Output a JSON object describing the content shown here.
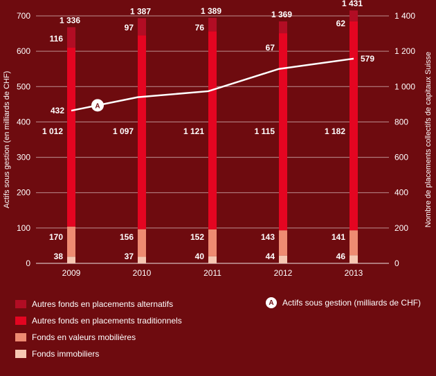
{
  "chart_data": {
    "type": "bar",
    "categories": [
      "2009",
      "2010",
      "2011",
      "2012",
      "2013"
    ],
    "series": [
      {
        "name": "Fonds immobiliers",
        "values": [
          38,
          37,
          40,
          44,
          46
        ],
        "color": "#f6c7b2"
      },
      {
        "name": "Fonds en valeurs mobilières",
        "values": [
          170,
          156,
          152,
          143,
          141
        ],
        "color": "#ee8b72"
      },
      {
        "name": "Autres fonds en placements traditionnels",
        "values": [
          1012,
          1097,
          1121,
          1115,
          1182
        ],
        "color": "#e40521"
      },
      {
        "name": "Autres fonds en placements alternatifs",
        "values": [
          116,
          97,
          76,
          67,
          62
        ],
        "color": "#b20d24"
      }
    ],
    "totals": [
      "1 336",
      "1 387",
      "1 389",
      "1 369",
      "1 431"
    ],
    "bar_labels": {
      "immo": [
        "38",
        "37",
        "40",
        "44",
        "46"
      ],
      "valeurs": [
        "170",
        "156",
        "152",
        "143",
        "141"
      ],
      "traditionnels": [
        "1 012",
        "1 097",
        "1 121",
        "1 115",
        "1 182"
      ],
      "alternatifs": [
        "116",
        "97",
        "76",
        "67",
        "62"
      ]
    },
    "line": {
      "name": "Actifs sous gestion (milliards de CHF)",
      "marker": "A",
      "values": [
        432,
        470,
        487,
        550,
        579
      ],
      "first_label": "432",
      "last_label": "579",
      "color": "#ffffff"
    },
    "ylabel_left": "Actifs sous gestion (en milliards de CHF)",
    "ylabel_right": "Nombre de placements collectifs de capitaux Suisse",
    "ylim_left": [
      0,
      700
    ],
    "ylim_right": [
      0,
      1400
    ],
    "yticks_left": [
      "0",
      "100",
      "200",
      "300",
      "400",
      "500",
      "600",
      "700"
    ],
    "yticks_right": [
      "0",
      "200",
      "400",
      "600",
      "800",
      "1 000",
      "1 200",
      "1 400"
    ],
    "grid": true,
    "legend_position": "bottom"
  },
  "legend": [
    {
      "label": "Autres fonds en placements alternatifs",
      "color": "#b20d24"
    },
    {
      "label": "Autres fonds en placements traditionnels",
      "color": "#e40521"
    },
    {
      "label": "Fonds en valeurs mobilières",
      "color": "#ee8b72"
    },
    {
      "label": "Fonds immobiliers",
      "color": "#f6c7b2"
    }
  ],
  "legend_line": {
    "marker": "A",
    "label": "Actifs sous gestion (milliards de CHF)"
  }
}
